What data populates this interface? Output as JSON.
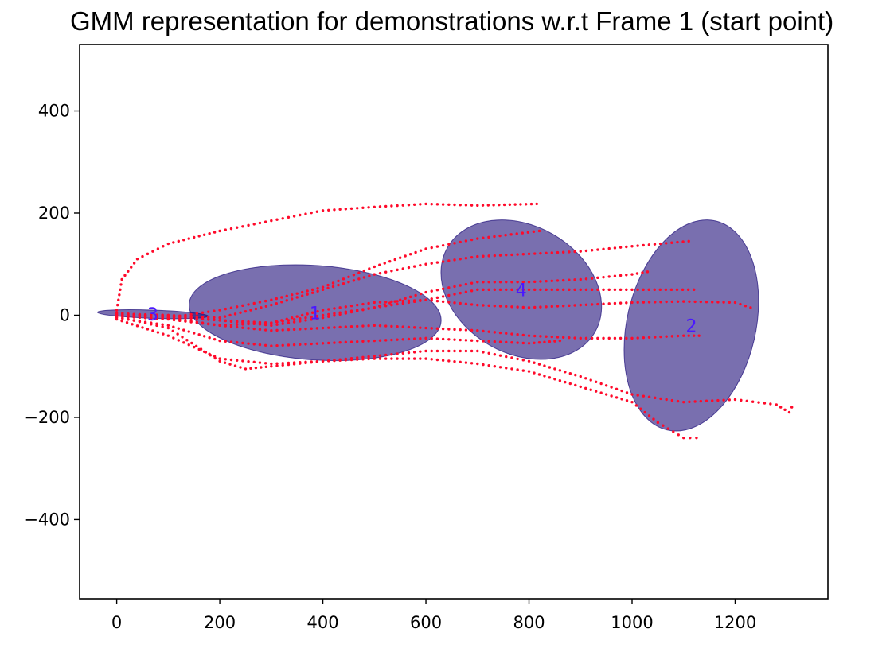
{
  "chart_data": {
    "type": "scatter",
    "title": "GMM representation for demonstrations w.r.t Frame 1 (start point)",
    "xlabel": "",
    "ylabel": "",
    "xlim": [
      -72,
      1380
    ],
    "ylim": [
      -555,
      530
    ],
    "xticks": [
      0,
      200,
      400,
      600,
      800,
      1000,
      1200
    ],
    "yticks": [
      400,
      200,
      0,
      -200,
      -400
    ],
    "xtick_labels": [
      "0",
      "200",
      "400",
      "600",
      "800",
      "1000",
      "1200"
    ],
    "ytick_labels": [
      "400",
      "200",
      "0",
      "−200",
      "−400"
    ],
    "grid": false,
    "point_color": "#ff0a2a",
    "ellipse_color": "#1f0f7a",
    "label_color": "#4a18ff",
    "gaussians": [
      {
        "label": "1",
        "center": [
          385,
          5
        ],
        "width": 490,
        "height": 185,
        "angle": -4
      },
      {
        "label": "2",
        "center": [
          1115,
          -20
        ],
        "width": 250,
        "height": 420,
        "angle": -13
      },
      {
        "label": "3",
        "center": [
          70,
          2
        ],
        "width": 215,
        "height": 16,
        "angle": -2
      },
      {
        "label": "4",
        "center": [
          785,
          50
        ],
        "width": 330,
        "height": 250,
        "angle": -30
      }
    ],
    "trajectories": [
      {
        "points": [
          [
            0,
            10
          ],
          [
            10,
            70
          ],
          [
            40,
            110
          ],
          [
            100,
            140
          ],
          [
            200,
            165
          ],
          [
            300,
            185
          ],
          [
            400,
            205
          ],
          [
            500,
            212
          ],
          [
            600,
            218
          ],
          [
            700,
            215
          ],
          [
            815,
            218
          ]
        ]
      },
      {
        "points": [
          [
            0,
            5
          ],
          [
            100,
            -5
          ],
          [
            200,
            10
          ],
          [
            300,
            30
          ],
          [
            400,
            55
          ],
          [
            500,
            95
          ],
          [
            600,
            130
          ],
          [
            700,
            150
          ],
          [
            820,
            165
          ]
        ]
      },
      {
        "points": [
          [
            0,
            3
          ],
          [
            100,
            0
          ],
          [
            200,
            -5
          ],
          [
            300,
            20
          ],
          [
            400,
            50
          ],
          [
            500,
            80
          ],
          [
            600,
            100
          ],
          [
            700,
            115
          ],
          [
            800,
            120
          ],
          [
            900,
            125
          ],
          [
            1000,
            135
          ],
          [
            1110,
            145
          ]
        ]
      },
      {
        "points": [
          [
            0,
            0
          ],
          [
            100,
            0
          ],
          [
            200,
            -10
          ],
          [
            300,
            -20
          ],
          [
            400,
            -5
          ],
          [
            500,
            15
          ],
          [
            600,
            45
          ],
          [
            700,
            65
          ],
          [
            800,
            65
          ],
          [
            900,
            70
          ],
          [
            1000,
            80
          ],
          [
            1030,
            85
          ]
        ]
      },
      {
        "points": [
          [
            0,
            0
          ],
          [
            100,
            -3
          ],
          [
            200,
            -10
          ],
          [
            300,
            -15
          ],
          [
            400,
            0
          ],
          [
            500,
            15
          ],
          [
            600,
            30
          ],
          [
            700,
            50
          ],
          [
            800,
            50
          ],
          [
            900,
            50
          ],
          [
            1000,
            50
          ],
          [
            1120,
            50
          ]
        ]
      },
      {
        "points": [
          [
            0,
            -2
          ],
          [
            100,
            -8
          ],
          [
            200,
            -20
          ],
          [
            300,
            -30
          ],
          [
            400,
            -25
          ],
          [
            500,
            -20
          ],
          [
            600,
            -25
          ],
          [
            700,
            -30
          ],
          [
            800,
            -40
          ],
          [
            900,
            -45
          ],
          [
            1000,
            -45
          ],
          [
            1100,
            -40
          ],
          [
            1130,
            -40
          ]
        ]
      },
      {
        "points": [
          [
            0,
            0
          ],
          [
            100,
            -5
          ],
          [
            200,
            -20
          ],
          [
            300,
            -15
          ],
          [
            400,
            10
          ],
          [
            500,
            25
          ],
          [
            600,
            30
          ],
          [
            700,
            20
          ],
          [
            800,
            15
          ],
          [
            900,
            20
          ],
          [
            1000,
            25
          ],
          [
            1100,
            27
          ],
          [
            1200,
            25
          ],
          [
            1230,
            15
          ]
        ]
      },
      {
        "points": [
          [
            0,
            -5
          ],
          [
            100,
            -20
          ],
          [
            200,
            -50
          ],
          [
            300,
            -60
          ],
          [
            400,
            -55
          ],
          [
            500,
            -50
          ],
          [
            600,
            -45
          ],
          [
            700,
            -50
          ],
          [
            800,
            -55
          ],
          [
            860,
            -50
          ]
        ]
      },
      {
        "points": [
          [
            0,
            -8
          ],
          [
            100,
            -40
          ],
          [
            200,
            -85
          ],
          [
            300,
            -95
          ],
          [
            400,
            -90
          ],
          [
            500,
            -85
          ],
          [
            600,
            -85
          ],
          [
            700,
            -95
          ],
          [
            800,
            -110
          ],
          [
            900,
            -140
          ],
          [
            1000,
            -170
          ],
          [
            1050,
            -210
          ],
          [
            1100,
            -240
          ],
          [
            1125,
            -240
          ]
        ]
      },
      {
        "points": [
          [
            0,
            -3
          ],
          [
            100,
            -25
          ],
          [
            200,
            -90
          ],
          [
            250,
            -105
          ],
          [
            300,
            -100
          ],
          [
            400,
            -90
          ],
          [
            500,
            -80
          ],
          [
            600,
            -70
          ],
          [
            700,
            -70
          ],
          [
            800,
            -90
          ],
          [
            900,
            -120
          ],
          [
            1000,
            -155
          ],
          [
            1100,
            -170
          ],
          [
            1200,
            -165
          ],
          [
            1280,
            -175
          ],
          [
            1305,
            -190
          ],
          [
            1310,
            -180
          ]
        ]
      }
    ]
  }
}
